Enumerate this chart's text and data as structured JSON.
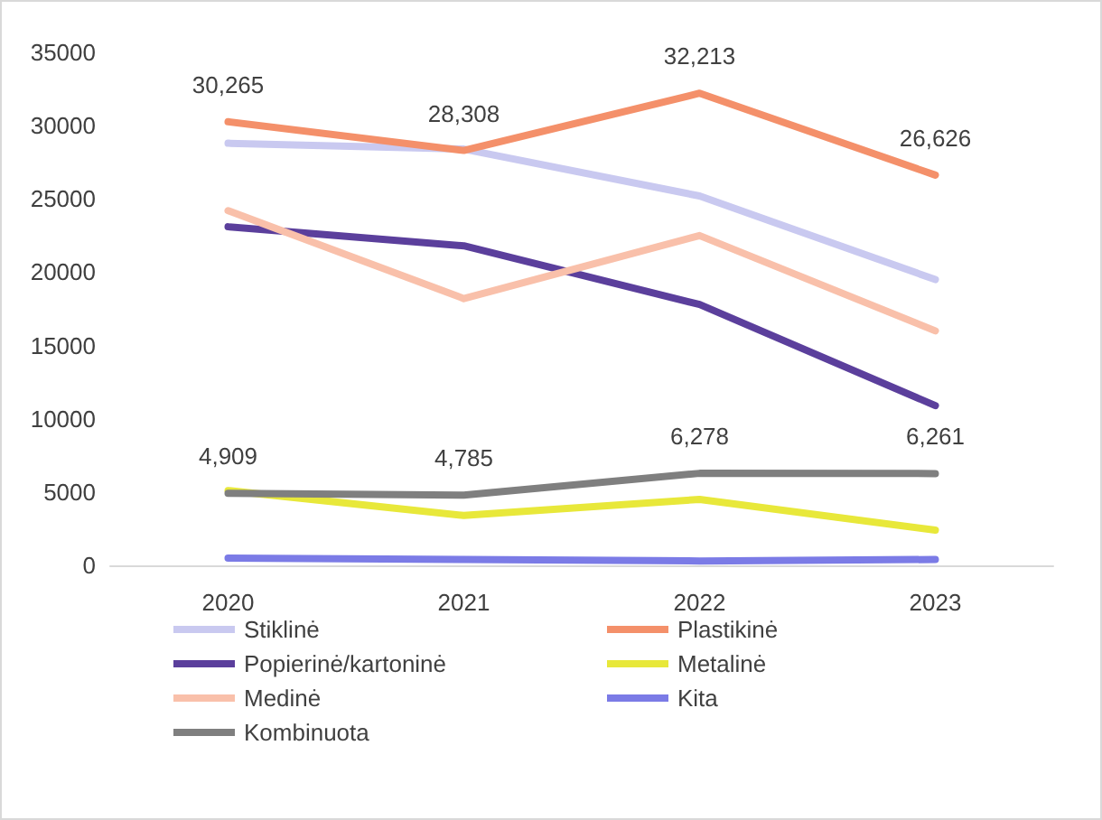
{
  "chart_data": {
    "type": "line",
    "categories": [
      "2020",
      "2021",
      "2022",
      "2023"
    ],
    "series": [
      {
        "name": "Stiklinė",
        "color": "#c9c9f0",
        "values": [
          28800,
          28400,
          25200,
          19500
        ]
      },
      {
        "name": "Plastikinė",
        "color": "#f4906a",
        "values": [
          30265,
          28308,
          32213,
          26626
        ],
        "value_labels": [
          "30,265",
          "28,308",
          "32,213",
          "26,626"
        ]
      },
      {
        "name": "Popierinė/kartoninė",
        "color": "#5b3f9c",
        "values": [
          23100,
          21800,
          17800,
          10900
        ]
      },
      {
        "name": "Metalinė",
        "color": "#e8e83a",
        "values": [
          5100,
          3400,
          4500,
          2400
        ]
      },
      {
        "name": "Medinė",
        "color": "#f9c0aa",
        "values": [
          24200,
          18200,
          22500,
          16000
        ]
      },
      {
        "name": "Kita",
        "color": "#7b7be6",
        "values": [
          500,
          400,
          300,
          400
        ]
      },
      {
        "name": "Kombinuota",
        "color": "#7f7f7f",
        "values": [
          4909,
          4785,
          6278,
          6261
        ],
        "value_labels": [
          "4,909",
          "4,785",
          "6,278",
          "6,261"
        ]
      }
    ],
    "ylim": [
      0,
      35000
    ],
    "yticks": [
      0,
      5000,
      10000,
      15000,
      20000,
      25000,
      30000,
      35000
    ],
    "grid": false,
    "legend": "bottom",
    "marker": "none",
    "line_style": "solid"
  }
}
